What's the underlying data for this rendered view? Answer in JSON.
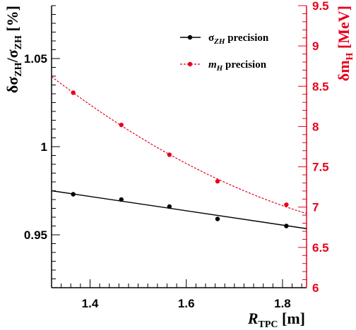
{
  "chart_data": {
    "type": "scatter",
    "xlabel": {
      "main": "R",
      "sub": "TPC",
      "unit": " [m]"
    },
    "ylabel_left": {
      "pre": "δσ",
      "sub1": "ZH",
      "mid": "/σ",
      "sub2": "ZH",
      "unit": " [%]"
    },
    "ylabel_right": {
      "pre": "δm",
      "sub": "H",
      "unit": " [MeV]"
    },
    "xlim": [
      1.32,
      1.85
    ],
    "ylim_left": [
      0.92,
      1.08
    ],
    "ylim_right": [
      6.0,
      9.5
    ],
    "x_ticks": [
      {
        "v": 1.4,
        "label": "1.4"
      },
      {
        "v": 1.6,
        "label": "1.6"
      },
      {
        "v": 1.8,
        "label": "1.8"
      }
    ],
    "y_left_ticks": [
      {
        "v": 0.95,
        "label": "0.95"
      },
      {
        "v": 1.0,
        "label": "1"
      },
      {
        "v": 1.05,
        "label": "1.05"
      }
    ],
    "y_right_ticks": [
      {
        "v": 6.0,
        "label": "6"
      },
      {
        "v": 6.5,
        "label": "6.5"
      },
      {
        "v": 7.0,
        "label": "7"
      },
      {
        "v": 7.5,
        "label": "7.5"
      },
      {
        "v": 8.0,
        "label": "8"
      },
      {
        "v": 8.5,
        "label": "8.5"
      },
      {
        "v": 9.0,
        "label": "9"
      },
      {
        "v": 9.5,
        "label": "9.5"
      }
    ],
    "colors": {
      "sigma": "#000000",
      "mass": "#e8001c"
    },
    "legend_position": "top-right",
    "series": [
      {
        "name": "σZH precision",
        "legend_main": "σ",
        "legend_sub": "ZH",
        "legend_rest": " precision",
        "axis": "left",
        "x": [
          1.365,
          1.465,
          1.565,
          1.665,
          1.808
        ],
        "y": [
          0.973,
          0.97,
          0.966,
          0.959,
          0.955
        ],
        "fit": {
          "kind": "linear",
          "x0": 1.32,
          "y0": 0.975,
          "x1": 1.85,
          "y1": 0.9535
        }
      },
      {
        "name": "mH precision",
        "legend_main": "m",
        "legend_sub": "H",
        "legend_rest": " precision",
        "axis": "right",
        "x": [
          1.365,
          1.465,
          1.565,
          1.665,
          1.808
        ],
        "y": [
          8.42,
          8.02,
          7.65,
          7.32,
          7.03
        ],
        "fit": {
          "kind": "quadratic",
          "x": [
            1.32,
            1.5,
            1.85
          ],
          "y": [
            8.62,
            7.88,
            6.92
          ]
        }
      }
    ]
  }
}
